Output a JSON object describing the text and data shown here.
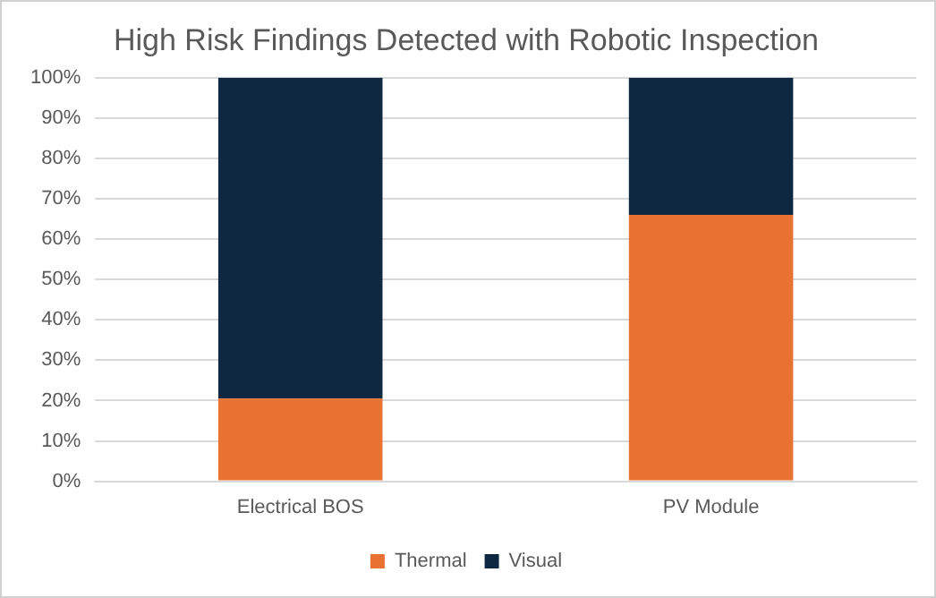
{
  "chart_data": {
    "type": "bar",
    "title": "High Risk Findings Detected with Robotic Inspection",
    "stacked": true,
    "categories": [
      "Electrical BOS",
      "PV Module"
    ],
    "series": [
      {
        "name": "Thermal",
        "color": "#e97132",
        "values": [
          20.5,
          66
        ]
      },
      {
        "name": "Visual",
        "color": "#0e2841",
        "values": [
          79.5,
          34
        ]
      }
    ],
    "ylim": [
      0,
      100
    ],
    "yticks": [
      {
        "value": 0,
        "label": "0%"
      },
      {
        "value": 10,
        "label": "10%"
      },
      {
        "value": 20,
        "label": "20%"
      },
      {
        "value": 30,
        "label": "30%"
      },
      {
        "value": 40,
        "label": "40%"
      },
      {
        "value": 50,
        "label": "50%"
      },
      {
        "value": 60,
        "label": "60%"
      },
      {
        "value": 70,
        "label": "70%"
      },
      {
        "value": 80,
        "label": "80%"
      },
      {
        "value": 90,
        "label": "90%"
      },
      {
        "value": 100,
        "label": "100%"
      }
    ],
    "grid": "y",
    "legend": "bottom"
  }
}
